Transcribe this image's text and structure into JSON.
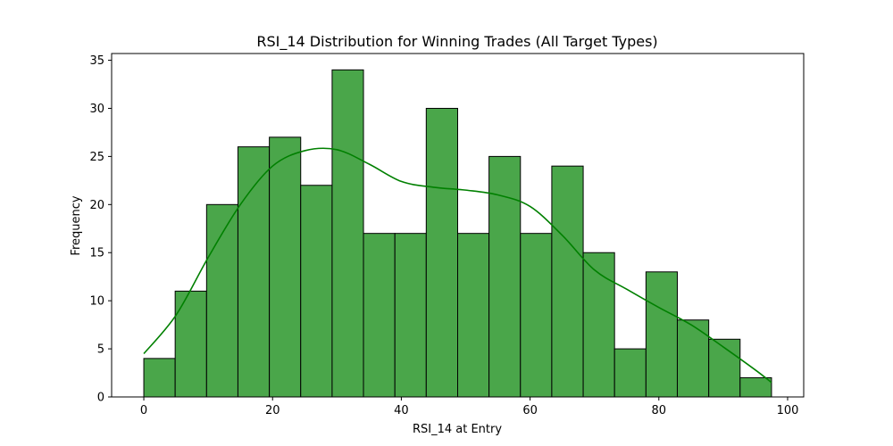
{
  "chart_data": {
    "type": "histogram",
    "title": "RSI_14 Distribution for Winning Trades (All Target Types)",
    "xlabel": "RSI_14 at Entry",
    "ylabel": "Frequency",
    "xlim": [
      -5,
      102.5
    ],
    "ylim": [
      0,
      35.7
    ],
    "xticks": [
      0,
      20,
      40,
      60,
      80,
      100
    ],
    "yticks": [
      0,
      5,
      10,
      15,
      20,
      25,
      30,
      35
    ],
    "bin_edges": [
      0,
      4.87,
      9.75,
      14.62,
      19.5,
      24.37,
      29.25,
      34.12,
      39.0,
      43.87,
      48.75,
      53.62,
      58.5,
      63.37,
      68.25,
      73.12,
      78.0,
      82.87,
      87.75,
      92.62,
      97.5
    ],
    "counts": [
      4,
      11,
      20,
      26,
      27,
      22,
      34,
      17,
      17,
      30,
      17,
      25,
      17,
      24,
      15,
      5,
      13,
      8,
      6,
      2
    ],
    "bar_color": "#4aa64a",
    "bar_edge_color": "#000000",
    "kde": {
      "color": "#008000",
      "x": [
        0,
        5,
        10,
        15,
        20,
        25,
        30,
        35,
        40,
        45,
        50,
        55,
        60,
        65,
        70,
        75,
        80,
        85,
        90,
        95,
        97.5
      ],
      "y": [
        4.5,
        8.5,
        14.5,
        20.0,
        24.0,
        25.6,
        25.7,
        24.2,
        22.4,
        21.8,
        21.5,
        21.0,
        19.8,
        16.8,
        13.2,
        11.2,
        9.3,
        7.5,
        5.2,
        2.8,
        1.5
      ]
    }
  }
}
